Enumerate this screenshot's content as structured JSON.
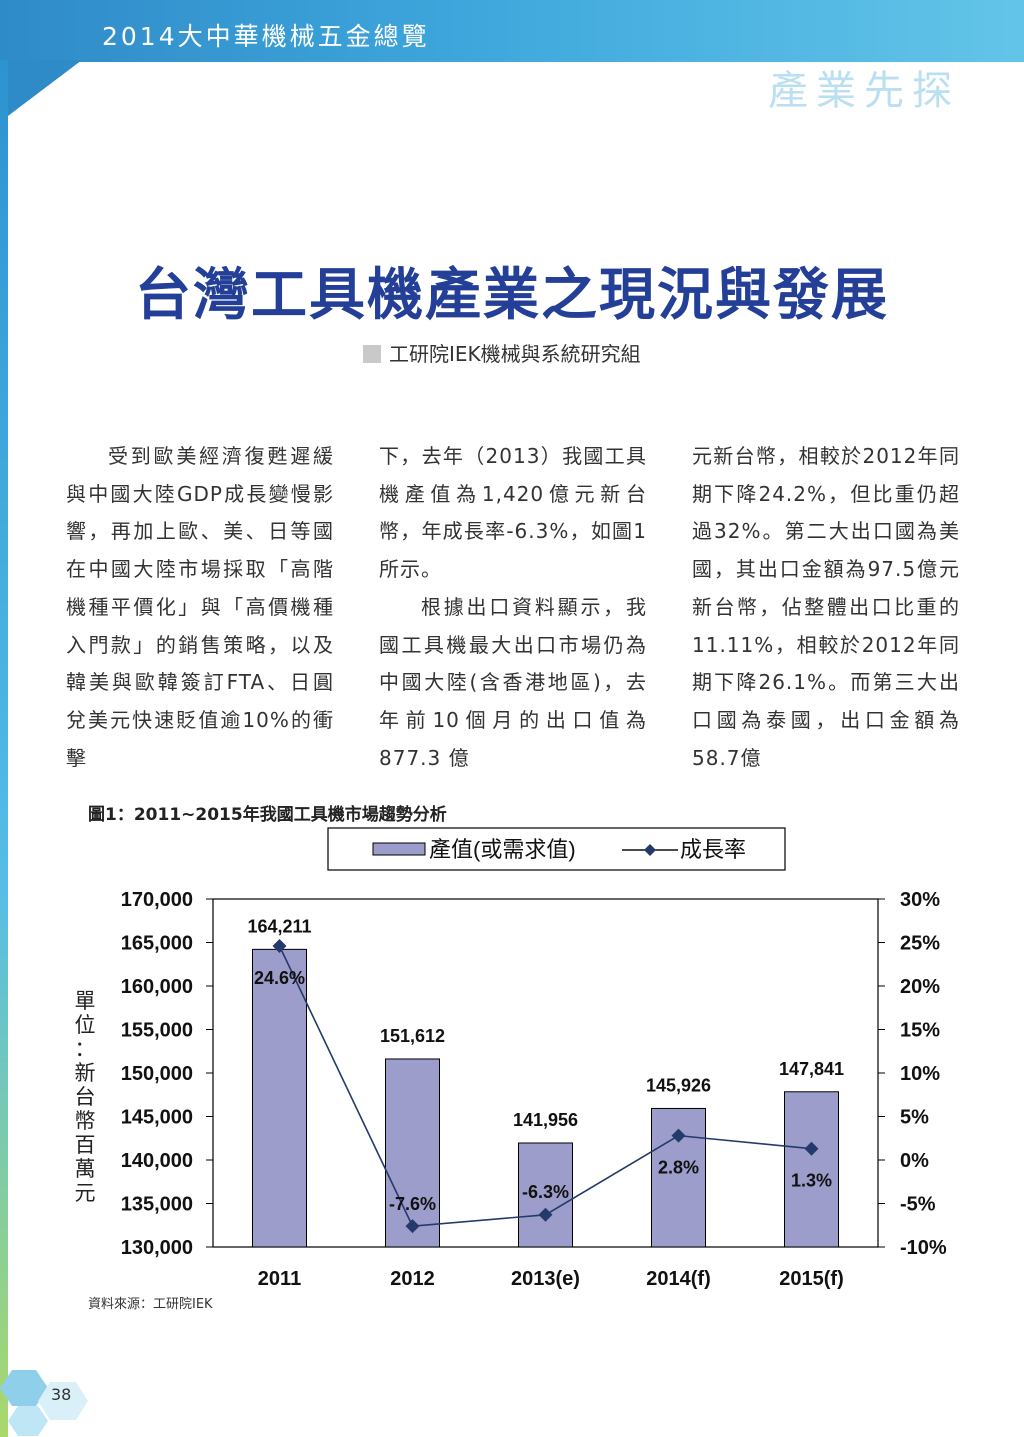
{
  "header": {
    "title": "2014大中華機械五金總覽"
  },
  "section_label": "產業先探",
  "article": {
    "title": "台灣工具機產業之現況與發展",
    "byline": "工研院IEK機械與系統研究組",
    "col1": [
      "受到歐美經濟復甦遲緩與中國大陸GDP成長變慢影響，再加上歐、美、日等國在中國大陸市場採取「高階機種平價化」與「高價機種入門款」的銷售策略，以及韓美與歐韓簽訂FTA、日圓兌美元快速貶值逾10%的衝擊"
    ],
    "col2a": "下，去年（2013）我國工具機產值為1,420億元新台幣，年成長率-6.3%，如圖1所示。",
    "col2b": "根據出口資料顯示，我國工具機最大出口市場仍為中國大陸(含香港地區)，去年前10個月的出口值為877.3 億",
    "col3": "元新台幣，相較於2012年同期下降24.2%，但比重仍超過32%。第二大出口國為美國，其出口金額為97.5億元新台幣，佔整體出口比重的11.11%，相較於2012年同期下降26.1%。而第三大出口國為泰國，出口金額為58.7億"
  },
  "figure": {
    "caption": "圖1：2011~2015年我國工具機市場趨勢分析",
    "source": "資料來源：工研院IEK"
  },
  "chart_data": {
    "type": "bar",
    "categories": [
      "2011",
      "2012",
      "2013(e)",
      "2014(f)",
      "2015(f)"
    ],
    "series": [
      {
        "name": "產值(或需求值)",
        "type": "bar",
        "axis": "left",
        "values": [
          164211,
          151612,
          141956,
          145926,
          147841
        ],
        "labels": [
          "164,211",
          "151,612",
          "141,956",
          "145,926",
          "147,841"
        ]
      },
      {
        "name": "成長率",
        "type": "line",
        "axis": "right",
        "values": [
          24.6,
          -7.6,
          -6.3,
          2.8,
          1.3
        ],
        "labels": [
          "24.6%",
          "-7.6%",
          "-6.3%",
          "2.8%",
          "1.3%"
        ]
      }
    ],
    "ylabel": "單位：新台幣百萬元",
    "ylim": [
      130000,
      170000
    ],
    "yticks": [
      "130,000",
      "135,000",
      "140,000",
      "145,000",
      "150,000",
      "155,000",
      "160,000",
      "165,000",
      "170,000"
    ],
    "y2lim": [
      -10,
      30
    ],
    "y2ticks": [
      "-10%",
      "-5%",
      "0%",
      "5%",
      "10%",
      "15%",
      "20%",
      "25%",
      "30%"
    ],
    "legend_position": "top",
    "grid": false,
    "colors": {
      "bar": "#9c9dcb",
      "line": "#243a6b"
    }
  },
  "page": {
    "number": "38"
  }
}
